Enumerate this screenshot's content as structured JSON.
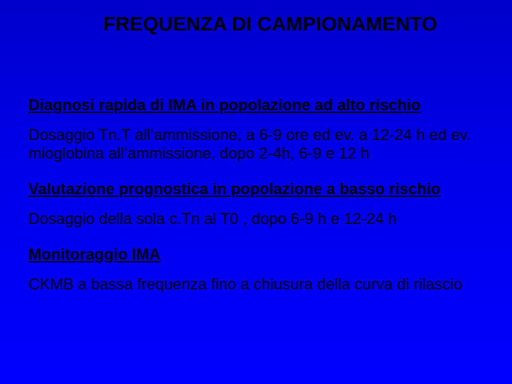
{
  "background_gradient": [
    "#0000cc",
    "#0000ff"
  ],
  "text_color": "#000000",
  "title_fontsize": 28,
  "heading_fontsize": 22,
  "body_fontsize": 22,
  "title": "FREQUENZA DI CAMPIONAMENTO",
  "sections": [
    {
      "heading": "Diagnosi rapida di IMA in popolazione ad alto rischio",
      "body": "Dosaggio Tn.T all’ammissione, a 6-9 ore ed ev. a 12-24 h ed ev. mioglobina all’ammissione, dopo 2-4h, 6-9 e 12 h"
    },
    {
      "heading": "Valutazione prognostica in popolazione a basso rischio",
      "body": "Dosaggio della sola c.Tn al T0 , dopo 6-9 h e 12-24 h"
    },
    {
      "heading": "Monitoraggio IMA",
      "body": "CKMB  a bassa frequenza fino a chiusura  della  curva di rilascio"
    }
  ]
}
